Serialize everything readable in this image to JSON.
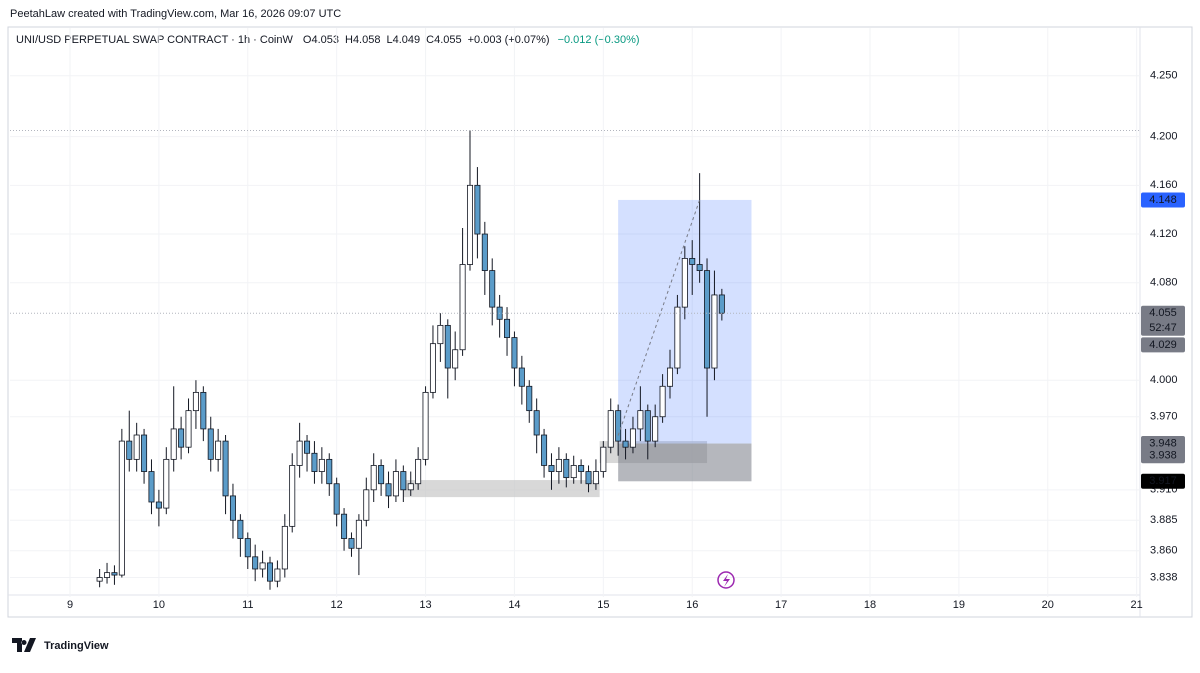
{
  "header": "PeetahLaw created with TradingView.com, Mar 16, 2026 09:07 UTC",
  "brand": "TradingView",
  "chart_data": {
    "type": "candlestick",
    "title": "UNI/USD PERPETUAL SWAP CONTRACT · 1h · CoinW",
    "ohlc_legend": [
      {
        "label": "O",
        "value": 4.053
      },
      {
        "label": "H",
        "value": 4.058
      },
      {
        "label": "L",
        "value": 4.049
      },
      {
        "label": "C",
        "value": 4.055
      }
    ],
    "change": "+0.003 (+0.07%)",
    "change2": "−0.012 (−0.30%)",
    "x": [
      8,
      10,
      12,
      14,
      16,
      18,
      20,
      22,
      24,
      26,
      28,
      30,
      32,
      34,
      36,
      38,
      40,
      42,
      44,
      46,
      48,
      50,
      52,
      54,
      56,
      58,
      60,
      62,
      64,
      66,
      68,
      70,
      72,
      74,
      76,
      78,
      80,
      82,
      84,
      86,
      88,
      90,
      92,
      94,
      96,
      98,
      100,
      102,
      104,
      106,
      108,
      110,
      112,
      114,
      116,
      118,
      120,
      122,
      124,
      126,
      128,
      130,
      132,
      134,
      136,
      138,
      140,
      142,
      144,
      146,
      148,
      150,
      152,
      154,
      156,
      158,
      160,
      162,
      164,
      166,
      168,
      170,
      172,
      174,
      176
    ],
    "open": [
      3.835,
      3.838,
      3.842,
      3.84,
      3.95,
      3.935,
      3.955,
      3.925,
      3.9,
      3.895,
      3.935,
      3.96,
      3.945,
      3.975,
      3.99,
      3.96,
      3.935,
      3.95,
      3.905,
      3.885,
      3.87,
      3.855,
      3.845,
      3.85,
      3.835,
      3.845,
      3.88,
      3.93,
      3.95,
      3.94,
      3.925,
      3.935,
      3.915,
      3.89,
      3.87,
      3.862,
      3.885,
      3.91,
      3.93,
      3.915,
      3.905,
      3.925,
      3.91,
      3.915,
      3.935,
      3.99,
      4.03,
      4.045,
      4.01,
      4.025,
      4.095,
      4.16,
      4.12,
      4.09,
      4.06,
      4.05,
      4.035,
      4.01,
      3.995,
      3.975,
      3.955,
      3.93,
      3.925,
      3.935,
      3.92,
      3.93,
      3.925,
      3.915,
      3.925,
      3.945,
      3.975,
      3.95,
      3.945,
      3.96,
      3.975,
      3.95,
      3.97,
      3.995,
      4.01,
      4.06,
      4.1,
      4.095,
      4.09,
      4.01,
      4.07
    ],
    "high": [
      3.845,
      3.85,
      3.848,
      3.96,
      3.975,
      3.965,
      3.96,
      3.935,
      3.91,
      3.945,
      3.995,
      3.97,
      3.985,
      4.0,
      3.995,
      3.97,
      3.96,
      3.955,
      3.915,
      3.89,
      3.875,
      3.865,
      3.86,
      3.855,
      3.852,
      3.89,
      3.94,
      3.965,
      3.955,
      3.95,
      3.945,
      3.94,
      3.92,
      3.895,
      3.875,
      3.89,
      3.92,
      3.94,
      3.935,
      3.925,
      3.935,
      3.93,
      3.925,
      3.945,
      3.995,
      4.045,
      4.055,
      4.05,
      4.04,
      4.125,
      4.205,
      4.175,
      4.13,
      4.1,
      4.07,
      4.06,
      4.04,
      4.02,
      4.0,
      3.985,
      3.96,
      3.94,
      3.945,
      3.94,
      3.938,
      3.935,
      3.93,
      3.935,
      3.95,
      3.985,
      3.98,
      3.96,
      3.97,
      3.995,
      3.98,
      3.98,
      4.005,
      4.025,
      4.07,
      4.11,
      4.115,
      4.17,
      4.1,
      4.09,
      4.075
    ],
    "low": [
      3.83,
      3.833,
      3.832,
      3.838,
      3.925,
      3.925,
      3.915,
      3.89,
      3.88,
      3.89,
      3.925,
      3.935,
      3.94,
      3.96,
      3.95,
      3.925,
      3.925,
      3.89,
      3.87,
      3.855,
      3.845,
      3.835,
      3.838,
      3.828,
      3.83,
      3.838,
      3.875,
      3.92,
      3.925,
      3.915,
      3.915,
      3.905,
      3.88,
      3.86,
      3.855,
      3.84,
      3.88,
      3.9,
      3.905,
      3.895,
      3.9,
      3.9,
      3.905,
      3.91,
      3.93,
      3.985,
      4.015,
      3.985,
      4.0,
      4.02,
      4.09,
      4.1,
      4.07,
      4.045,
      4.035,
      4.02,
      3.995,
      3.98,
      3.965,
      3.94,
      3.92,
      3.91,
      3.915,
      3.912,
      3.915,
      3.915,
      3.908,
      3.91,
      3.92,
      3.94,
      3.938,
      3.935,
      3.94,
      3.95,
      3.935,
      3.945,
      3.965,
      3.985,
      4.005,
      4.05,
      4.07,
      4.08,
      3.97,
      4.0,
      4.049
    ],
    "close": [
      3.838,
      3.842,
      3.84,
      3.95,
      3.935,
      3.955,
      3.925,
      3.9,
      3.895,
      3.935,
      3.96,
      3.945,
      3.975,
      3.99,
      3.96,
      3.935,
      3.95,
      3.905,
      3.885,
      3.87,
      3.855,
      3.845,
      3.85,
      3.835,
      3.845,
      3.88,
      3.93,
      3.95,
      3.94,
      3.925,
      3.935,
      3.915,
      3.89,
      3.87,
      3.862,
      3.885,
      3.91,
      3.93,
      3.915,
      3.905,
      3.925,
      3.91,
      3.915,
      3.935,
      3.99,
      4.03,
      4.045,
      4.01,
      4.025,
      4.095,
      4.16,
      4.12,
      4.09,
      4.06,
      4.05,
      4.035,
      4.01,
      3.995,
      3.975,
      3.955,
      3.93,
      3.925,
      3.935,
      3.92,
      3.93,
      3.925,
      3.915,
      3.925,
      3.945,
      3.975,
      3.95,
      3.945,
      3.96,
      3.975,
      3.95,
      3.97,
      3.995,
      4.01,
      4.06,
      4.1,
      4.095,
      4.09,
      4.01,
      4.07,
      4.055
    ],
    "up_color": "#ffffff",
    "down_color": "#5b9cc9",
    "wick_color": "#131722",
    "grid": true,
    "xlim": [
      -16.2,
      288.9
    ],
    "xticks": [
      {
        "value": 0,
        "label": "9"
      },
      {
        "value": 24,
        "label": "10"
      },
      {
        "value": 48,
        "label": "11"
      },
      {
        "value": 72,
        "label": "12"
      },
      {
        "value": 96,
        "label": "13"
      },
      {
        "value": 120,
        "label": "14"
      },
      {
        "value": 144,
        "label": "15"
      },
      {
        "value": 168,
        "label": "16"
      },
      {
        "value": 192,
        "label": "17"
      },
      {
        "value": 216,
        "label": "18"
      },
      {
        "value": 240,
        "label": "19"
      },
      {
        "value": 264,
        "label": "20"
      },
      {
        "value": 288,
        "label": "21"
      }
    ],
    "ylim": [
      3.822,
      4.267
    ],
    "yticks": [
      {
        "value": 3.838,
        "label": "3.838"
      },
      {
        "value": 3.86,
        "label": "3.860"
      },
      {
        "value": 3.885,
        "label": "3.885"
      },
      {
        "value": 3.91,
        "label": "3.910"
      },
      {
        "value": 3.97,
        "label": "3.970"
      },
      {
        "value": 4.0,
        "label": "4.000"
      },
      {
        "value": 4.08,
        "label": "4.080"
      },
      {
        "value": 4.12,
        "label": "4.120"
      },
      {
        "value": 4.16,
        "label": "4.160"
      },
      {
        "value": 4.2,
        "label": "4.200"
      },
      {
        "value": 4.25,
        "label": "4.250"
      }
    ],
    "price_labels": [
      {
        "value": 4.148,
        "color": "#2962ff"
      },
      {
        "value": 4.055,
        "color": "#787b86",
        "countdown": "52:47"
      },
      {
        "value": 4.029,
        "color": "#787b86"
      },
      {
        "value": 3.948,
        "color": "#787b86"
      },
      {
        "value": 3.938,
        "color": "#787b86"
      },
      {
        "value": 3.917,
        "color": "#000000"
      }
    ],
    "position": {
      "x": [
        148,
        184
      ],
      "entry": 3.948,
      "target": 4.148,
      "stop": 3.917
    },
    "zones": [
      {
        "x": [
          90,
          143
        ],
        "y": [
          3.904,
          3.918
        ]
      },
      {
        "x": [
          143,
          172
        ],
        "y": [
          3.932,
          3.95
        ]
      }
    ]
  }
}
